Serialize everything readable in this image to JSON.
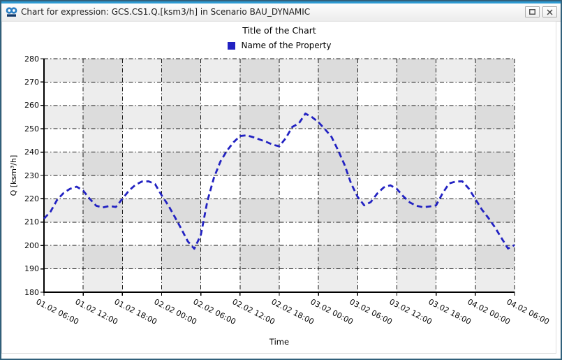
{
  "window": {
    "title": "Chart for expression: GCS.CS1.Q.[ksm3/h] in Scenario BAU_DYNAMIC"
  },
  "colors": {
    "window_border": "#31607b",
    "title_accent": "#2e9ad2",
    "series_line": "#2222c2",
    "legend_marker": "#2222c2",
    "plot_band_gray": "#e9e9e9",
    "gridline": "#1a1a1a"
  },
  "chart_data": {
    "type": "line",
    "title": "Title of the Chart",
    "xlabel": "Time",
    "ylabel": "Q [ksm³/h]",
    "ylim": [
      180,
      280
    ],
    "y_tick_step": 10,
    "y_tick_labels": [
      "280",
      "270",
      "260",
      "250",
      "240",
      "230",
      "220",
      "210",
      "200",
      "190",
      "180"
    ],
    "x_tick_labels": [
      "01.02 06:00",
      "01.02 12:00",
      "01.02 18:00",
      "02.02 00:00",
      "02.02 06:00",
      "02.02 12:00",
      "02.02 18:00",
      "03.02 00:00",
      "03.02 06:00",
      "03.02 12:00",
      "03.02 18:00",
      "04.02 00:00",
      "04.02 06:00"
    ],
    "x_range_hours": 72,
    "legend_position": "top-center",
    "grid": "dash-dot black, checkerboard shaded bands",
    "series": [
      {
        "name": "Name of the Property",
        "color": "#2222c2",
        "line_style": "dashed",
        "start": "01.02 06:00",
        "interval_hours": 1,
        "values": [
          211.5,
          214.5,
          219.5,
          222.5,
          224.3,
          225.2,
          223.5,
          220.0,
          217.0,
          216.3,
          216.9,
          216.5,
          220.0,
          223.5,
          226.0,
          227.4,
          227.5,
          226.3,
          221.5,
          217.3,
          212.3,
          207.2,
          201.8,
          198.6,
          204.5,
          219.0,
          229.0,
          236.0,
          240.6,
          244.2,
          246.9,
          247.2,
          246.4,
          245.4,
          244.4,
          243.2,
          242.5,
          246.0,
          250.8,
          252.3,
          256.5,
          255.0,
          252.8,
          249.8,
          246.5,
          240.8,
          234.5,
          226.5,
          220.8,
          217.2,
          218.6,
          222.3,
          224.9,
          225.8,
          224.2,
          221.0,
          218.4,
          217.0,
          216.4,
          216.7,
          217.2,
          222.4,
          226.6,
          227.4,
          227.5,
          224.4,
          219.9,
          215.4,
          211.8,
          207.8,
          203.2,
          198.7,
          200.2
        ]
      }
    ]
  }
}
